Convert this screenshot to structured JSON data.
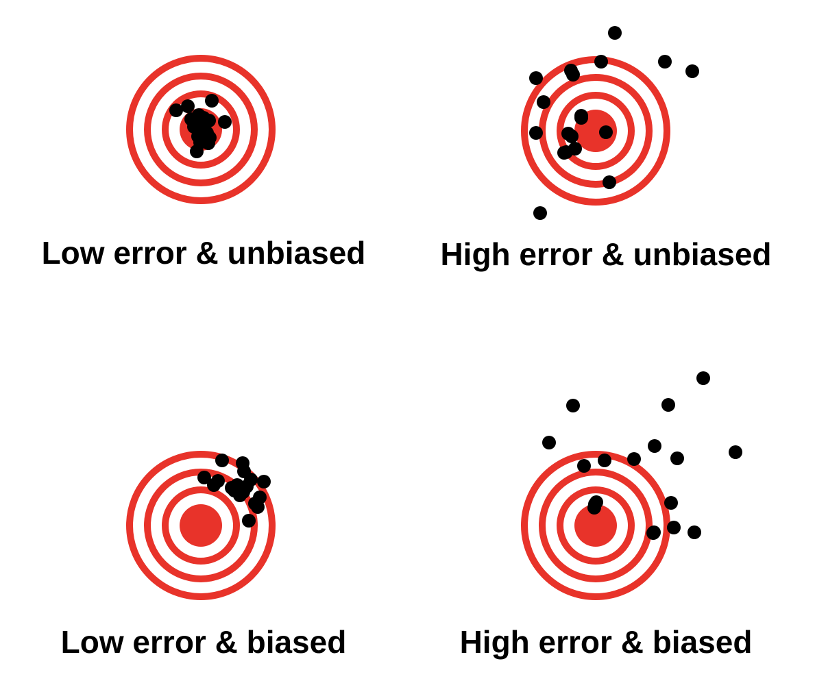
{
  "colors": {
    "target": "#e8332a",
    "background": "#ffffff",
    "shot": "#000000",
    "label": "#000000"
  },
  "panels": [
    {
      "label": "Low error & unbiased",
      "error": "low",
      "bias": "none",
      "shot_count": 17
    },
    {
      "label": "High error & unbiased",
      "error": "high",
      "bias": "none",
      "shot_count": 19
    },
    {
      "label": "Low error & biased",
      "error": "low",
      "bias": "upper-right",
      "shot_count": 18
    },
    {
      "label": "High error & biased",
      "error": "high",
      "bias": "upper-right",
      "shot_count": 18
    }
  ]
}
